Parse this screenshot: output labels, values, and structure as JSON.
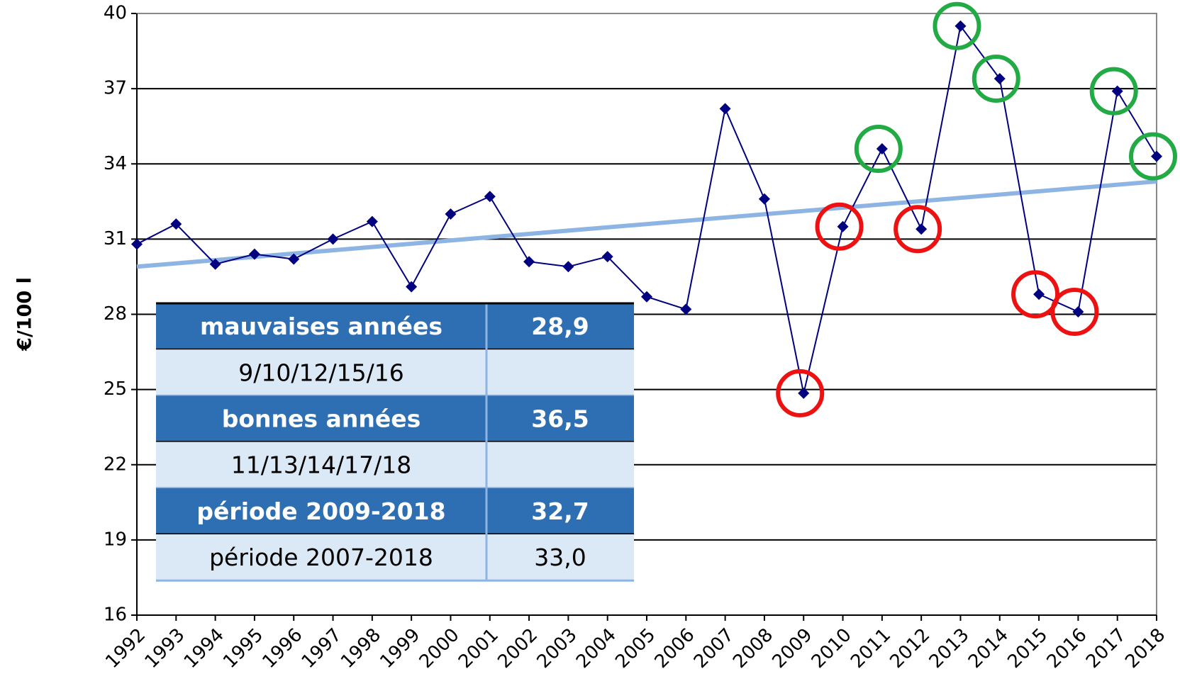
{
  "chart_data": {
    "type": "line",
    "y_label": "€/100 l",
    "categories": [
      "1992",
      "1993",
      "1994",
      "1995",
      "1996",
      "1997",
      "1998",
      "1999",
      "2000",
      "2001",
      "2002",
      "2003",
      "2004",
      "2005",
      "2006",
      "2007",
      "2008",
      "2009",
      "2010",
      "2011",
      "2012",
      "2013",
      "2014",
      "2015",
      "2016",
      "2017",
      "2018"
    ],
    "series": [
      {
        "color": "#000080",
        "values": [
          30.8,
          31.6,
          30.0,
          30.4,
          30.2,
          31.0,
          31.7,
          29.1,
          32.0,
          32.7,
          30.1,
          29.9,
          30.3,
          28.7,
          28.2,
          36.2,
          32.6,
          24.85,
          31.5,
          34.6,
          31.4,
          39.5,
          37.4,
          28.8,
          28.1,
          36.9,
          34.3
        ]
      }
    ],
    "trend": {
      "color": "#8eb4e3",
      "values": [
        29.9,
        33.3
      ]
    },
    "circled": [
      {
        "category": "2009",
        "color": "#ee1111"
      },
      {
        "category": "2010",
        "color": "#ee1111"
      },
      {
        "category": "2012",
        "color": "#ee1111"
      },
      {
        "category": "2015",
        "color": "#ee1111"
      },
      {
        "category": "2016",
        "color": "#ee1111"
      },
      {
        "category": "2011",
        "color": "#22aa44"
      },
      {
        "category": "2013",
        "color": "#22aa44"
      },
      {
        "category": "2014",
        "color": "#22aa44"
      },
      {
        "category": "2017",
        "color": "#22aa44"
      },
      {
        "category": "2018",
        "color": "#22aa44"
      }
    ],
    "ylim": [
      16,
      40
    ],
    "yticks": [
      16,
      19,
      22,
      25,
      28,
      31,
      34,
      37,
      40
    ],
    "grid": true,
    "table": {
      "rows": [
        [
          "mauvaises  années",
          "28,9"
        ],
        [
          "9/10/12/15/16"
        ],
        [
          "bonnes années",
          "36,5"
        ],
        [
          "11/13/14/17/18"
        ],
        [
          "période 2009-2018",
          "32,7"
        ],
        [
          "période 2007-2018",
          "33,0"
        ]
      ]
    }
  }
}
